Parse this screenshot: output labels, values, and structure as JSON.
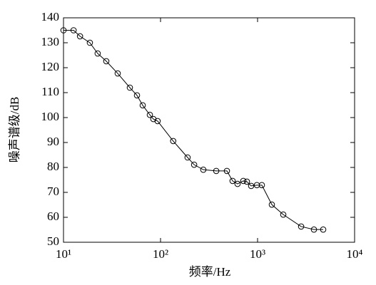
{
  "chart_data": {
    "type": "line",
    "xlabel": "频率/Hz",
    "ylabel": "噪声谱级/dB",
    "x": [
      10,
      12.7,
      14.8,
      18.7,
      22.5,
      27.6,
      36.2,
      48.3,
      57.2,
      65.5,
      77.6,
      84.4,
      93.3,
      135,
      190,
      222,
      276,
      375,
      483,
      553,
      622,
      713,
      776,
      859,
      984,
      1107,
      1403,
      1840,
      2812,
      3811,
      4747
    ],
    "series": [
      {
        "color": "#000000",
        "values": [
          135,
          135,
          132.6,
          130,
          125.7,
          122.6,
          117.7,
          112,
          108.9,
          104.9,
          101.1,
          99.4,
          98.6,
          90.6,
          84,
          81.1,
          79.1,
          78.6,
          78.6,
          74.6,
          73.4,
          74.6,
          74.3,
          72.6,
          72.9,
          72.9,
          65.1,
          61.1,
          56.3,
          55.1,
          55.1
        ]
      }
    ],
    "xscale": "log",
    "xlim": [
      10,
      10000
    ],
    "xticks": [
      {
        "value": 10,
        "label": "10¹"
      },
      {
        "value": 100,
        "label": "10²"
      },
      {
        "value": 1000,
        "label": "10³"
      },
      {
        "value": 10000,
        "label": "10⁴"
      }
    ],
    "ylim": [
      50,
      140
    ],
    "yticks": [
      50,
      60,
      70,
      80,
      90,
      100,
      110,
      120,
      130,
      140
    ],
    "grid": false
  }
}
